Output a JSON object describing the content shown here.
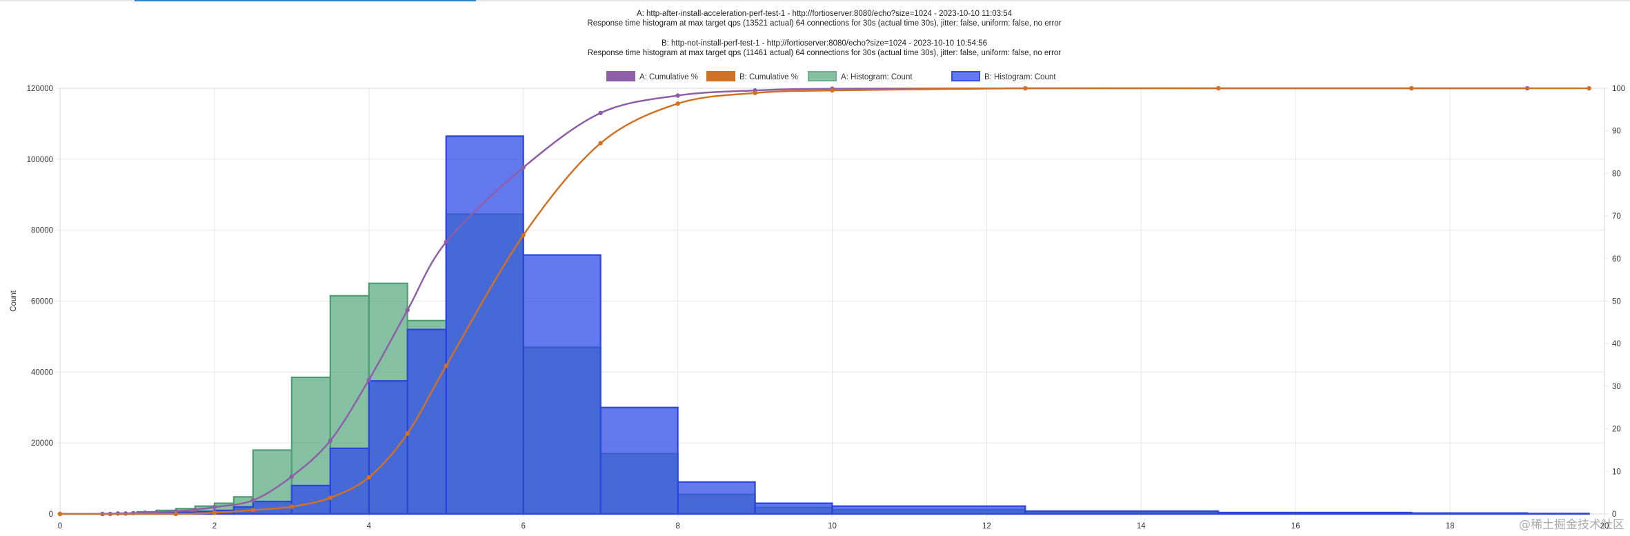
{
  "chart_data": {
    "type": "bar",
    "title_lines": [
      "A: http-after-install-acceleration-perf-test-1 - http://fortioserver:8080/echo?size=1024 - 2023-10-10 11:03:54",
      "Response time histogram at max target qps (13521 actual) 64 connections for 30s (actual time 30s), jitter: false, uniform: false, no error",
      "",
      "B: http-not-install-perf-test-1 - http://fortioserver:8080/echo?size=1024 - 2023-10-10 10:54:56",
      "Response time histogram at max target qps (11461 actual) 64 connections for 30s (actual time 30s), jitter: false, uniform: false, no error"
    ],
    "ylabel": "Count",
    "xlim": [
      0,
      20
    ],
    "ylim": [
      0,
      120000
    ],
    "y2lim": [
      0,
      100
    ],
    "grid": true,
    "legend_position": "top",
    "x_ticks": [
      0,
      2,
      4,
      6,
      8,
      10,
      12,
      14,
      16,
      18,
      20
    ],
    "y_ticks": [
      0,
      20000,
      40000,
      60000,
      80000,
      100000,
      120000
    ],
    "y2_ticks": [
      0,
      10,
      20,
      30,
      40,
      50,
      60,
      70,
      80,
      90,
      100
    ],
    "legend": [
      {
        "label": "A: Cumulative %",
        "color": "#8e5ea8",
        "kind": "line"
      },
      {
        "label": "B: Cumulative %",
        "color": "#d07124",
        "kind": "line"
      },
      {
        "label": "A: Histogram: Count",
        "color": "#6fb08e",
        "kind": "hist"
      },
      {
        "label": "B: Histogram: Count",
        "color": "#3450e8",
        "kind": "hist"
      }
    ],
    "series": [
      {
        "name": "A: Histogram: Count",
        "kind": "histogram",
        "fill": "rgba(102,176,140,0.8)",
        "stroke": "#4f9c74",
        "bins": [
          [
            0.5,
            0.6,
            60
          ],
          [
            0.6,
            0.7,
            90
          ],
          [
            0.7,
            0.8,
            120
          ],
          [
            0.8,
            0.9,
            160
          ],
          [
            0.9,
            1.0,
            220
          ],
          [
            1.0,
            1.25,
            600
          ],
          [
            1.25,
            1.5,
            1000
          ],
          [
            1.5,
            1.75,
            1500
          ],
          [
            1.75,
            2.0,
            2200
          ],
          [
            2.0,
            2.25,
            3000
          ],
          [
            2.25,
            2.5,
            4800
          ],
          [
            2.5,
            3.0,
            18000
          ],
          [
            3.0,
            3.5,
            38500
          ],
          [
            3.5,
            4.0,
            61500
          ],
          [
            4.0,
            4.5,
            65000
          ],
          [
            4.5,
            5.0,
            54500
          ],
          [
            5.0,
            6.0,
            84500
          ],
          [
            6.0,
            7.0,
            47000
          ],
          [
            7.0,
            8.0,
            17000
          ],
          [
            8.0,
            9.0,
            5500
          ],
          [
            9.0,
            10.0,
            1800
          ],
          [
            10.0,
            12.5,
            1200
          ],
          [
            12.5,
            15.0,
            500
          ],
          [
            15.0,
            17.5,
            300
          ],
          [
            17.5,
            19.0,
            150
          ],
          [
            19.0,
            19.8,
            100
          ]
        ]
      },
      {
        "name": "B: Histogram: Count",
        "kind": "histogram",
        "fill": "rgba(48,76,232,0.75)",
        "stroke": "#2b45db",
        "bins": [
          [
            0.5,
            0.6,
            30
          ],
          [
            0.6,
            0.7,
            50
          ],
          [
            0.7,
            0.8,
            60
          ],
          [
            0.8,
            0.9,
            80
          ],
          [
            0.9,
            1.0,
            100
          ],
          [
            1.0,
            1.25,
            250
          ],
          [
            1.25,
            1.5,
            400
          ],
          [
            1.5,
            1.75,
            500
          ],
          [
            1.75,
            2.0,
            700
          ],
          [
            2.0,
            2.25,
            1000
          ],
          [
            2.25,
            2.5,
            2000
          ],
          [
            2.5,
            3.0,
            3500
          ],
          [
            3.0,
            3.5,
            8000
          ],
          [
            3.5,
            4.0,
            18500
          ],
          [
            4.0,
            4.5,
            37500
          ],
          [
            4.5,
            5.0,
            52000
          ],
          [
            5.0,
            6.0,
            106500
          ],
          [
            6.0,
            7.0,
            73000
          ],
          [
            7.0,
            8.0,
            30000
          ],
          [
            8.0,
            9.0,
            9000
          ],
          [
            9.0,
            10.0,
            3000
          ],
          [
            10.0,
            12.5,
            2200
          ],
          [
            12.5,
            15.0,
            800
          ],
          [
            15.0,
            17.5,
            400
          ],
          [
            17.5,
            19.0,
            250
          ],
          [
            19.0,
            19.8,
            100
          ]
        ]
      },
      {
        "name": "A: Cumulative %",
        "kind": "cumulative",
        "color": "#8e5ea8",
        "points": [
          [
            0,
            0
          ],
          [
            0.55,
            0
          ],
          [
            0.65,
            0
          ],
          [
            0.75,
            0.1
          ],
          [
            0.85,
            0.1
          ],
          [
            0.95,
            0.2
          ],
          [
            1.1,
            0.3
          ],
          [
            1.25,
            0.4
          ],
          [
            1.5,
            0.6
          ],
          [
            1.75,
            1
          ],
          [
            2.0,
            1.6
          ],
          [
            2.5,
            3.2
          ],
          [
            3.0,
            8.8
          ],
          [
            3.5,
            17.2
          ],
          [
            4.0,
            31.5
          ],
          [
            4.5,
            47.9
          ],
          [
            5.0,
            63.9
          ],
          [
            6.0,
            81.4
          ],
          [
            7.0,
            94.2
          ],
          [
            8.0,
            98.3
          ],
          [
            9.0,
            99.5
          ],
          [
            10.0,
            99.9
          ],
          [
            12.5,
            100
          ],
          [
            15.0,
            100
          ],
          [
            17.5,
            100
          ],
          [
            19.0,
            100
          ]
        ]
      },
      {
        "name": "B: Cumulative %",
        "kind": "cumulative",
        "color": "#d07124",
        "points": [
          [
            0,
            0
          ],
          [
            1.5,
            0
          ],
          [
            2.0,
            0.3
          ],
          [
            2.5,
            0.9
          ],
          [
            3.0,
            1.7
          ],
          [
            3.5,
            3.8
          ],
          [
            4.0,
            8.6
          ],
          [
            4.5,
            18.9
          ],
          [
            5.0,
            34.8
          ],
          [
            6.0,
            65.5
          ],
          [
            7.0,
            87.1
          ],
          [
            8.0,
            96.4
          ],
          [
            9.0,
            98.9
          ],
          [
            10.0,
            99.5
          ],
          [
            12.5,
            100
          ],
          [
            15.0,
            100
          ],
          [
            17.5,
            100
          ],
          [
            19.8,
            100
          ]
        ]
      }
    ]
  },
  "watermark": "@稀土掘金技术社区"
}
